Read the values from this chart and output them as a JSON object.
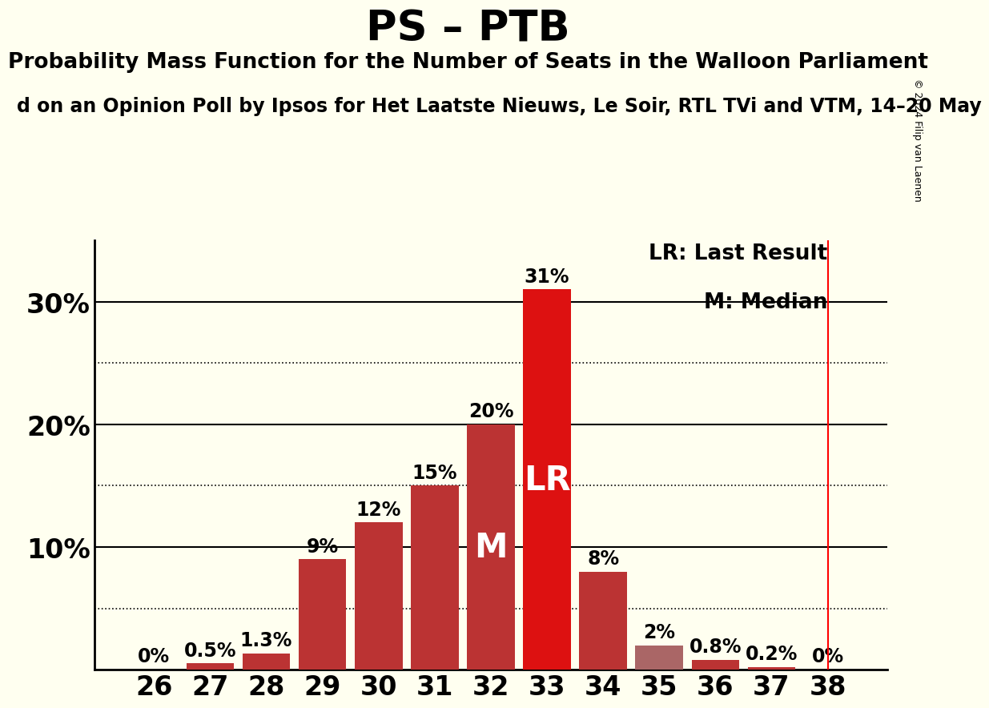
{
  "title": "PS – PTB",
  "subtitle": "Probability Mass Function for the Number of Seats in the Walloon Parliament",
  "source_line": "d on an Opinion Poll by Ipsos for Het Laatste Nieuws, Le Soir, RTL TVi and VTM, 14–20 May",
  "copyright": "© 2024 Filip van Laenen",
  "categories": [
    26,
    27,
    28,
    29,
    30,
    31,
    32,
    33,
    34,
    35,
    36,
    37,
    38
  ],
  "values": [
    0.0,
    0.5,
    1.3,
    9.0,
    12.0,
    15.0,
    20.0,
    31.0,
    8.0,
    2.0,
    0.8,
    0.2,
    0.0
  ],
  "labels": [
    "0%",
    "0.5%",
    "1.3%",
    "9%",
    "12%",
    "15%",
    "20%",
    "31%",
    "8%",
    "2%",
    "0.8%",
    "0.2%",
    "0%"
  ],
  "bar_color_bright": "#dd1111",
  "bar_color_dim": "#bb3333",
  "bar_color_gray": "#aa6666",
  "median_seat": 32,
  "lr_seat": 33,
  "vline_seat": 38,
  "background_color": "#fffff0",
  "ylim": [
    0,
    35
  ],
  "yticks": [
    0,
    10,
    20,
    30
  ],
  "ytick_labels": [
    "",
    "10%",
    "20%",
    "30%"
  ],
  "dotted_yticks": [
    5,
    15,
    25
  ],
  "solid_yticks": [
    10,
    20,
    30
  ],
  "legend_lr": "LR: Last Result",
  "legend_m": "M: Median",
  "title_fontsize": 38,
  "subtitle_fontsize": 19,
  "source_fontsize": 17,
  "bar_label_fontsize": 17,
  "axis_label_fontsize": 24,
  "annotation_fontsize": 30,
  "legend_fontsize": 19,
  "copyright_fontsize": 9
}
